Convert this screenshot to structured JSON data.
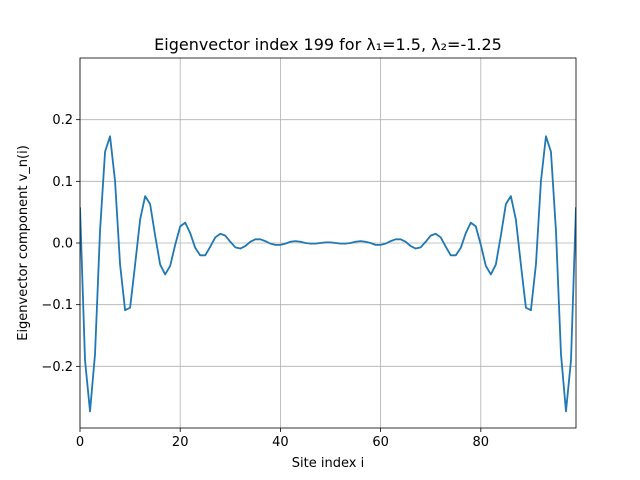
{
  "chart_data": {
    "type": "line",
    "title": "Eigenvector index 199 for λ₁=1.5, λ₂=-1.25",
    "xlabel": "Site index i",
    "ylabel": "Eigenvector component v_n(i)",
    "xlim": [
      0,
      99
    ],
    "ylim": [
      -0.3,
      0.3
    ],
    "xticks": [
      0,
      20,
      40,
      60,
      80
    ],
    "xtick_labels": [
      "0",
      "20",
      "40",
      "60",
      "80"
    ],
    "yticks": [
      -0.2,
      -0.1,
      0.0,
      0.1,
      0.2
    ],
    "ytick_labels": [
      "−0.2",
      "−0.1",
      "0.0",
      "0.1",
      "0.2"
    ],
    "grid": true,
    "series": [
      {
        "color": "#1f77b4",
        "x": [
          0,
          1,
          2,
          3,
          4,
          5,
          6,
          7,
          8,
          9,
          10,
          11,
          12,
          13,
          14,
          15,
          16,
          17,
          18,
          19,
          20,
          21,
          22,
          23,
          24,
          25,
          26,
          27,
          28,
          29,
          30,
          31,
          32,
          33,
          34,
          35,
          36,
          37,
          38,
          39,
          40,
          41,
          42,
          43,
          44,
          45,
          46,
          47,
          48,
          49,
          50,
          51,
          52,
          53,
          54,
          55,
          56,
          57,
          58,
          59,
          60,
          61,
          62,
          63,
          64,
          65,
          66,
          67,
          68,
          69,
          70,
          71,
          72,
          73,
          74,
          75,
          76,
          77,
          78,
          79,
          80,
          81,
          82,
          83,
          84,
          85,
          86,
          87,
          88,
          89,
          90,
          91,
          92,
          93,
          94,
          95,
          96,
          97,
          98,
          99
        ],
        "values": [
          0.058,
          -0.19,
          -0.273,
          -0.18,
          0.02,
          0.148,
          0.173,
          0.1,
          -0.035,
          -0.109,
          -0.105,
          -0.035,
          0.038,
          0.076,
          0.063,
          0.012,
          -0.035,
          -0.051,
          -0.037,
          -0.003,
          0.027,
          0.033,
          0.016,
          -0.008,
          -0.02,
          -0.02,
          -0.006,
          0.009,
          0.015,
          0.012,
          0.002,
          -0.007,
          -0.009,
          -0.005,
          0.002,
          0.006,
          0.006,
          0.003,
          -0.001,
          -0.003,
          -0.003,
          -0.001,
          0.002,
          0.003,
          0.002,
          0.0,
          -0.001,
          -0.001,
          0.0,
          0.001,
          0.001,
          0.0,
          -0.001,
          -0.001,
          0.0,
          0.002,
          0.003,
          0.002,
          0.0,
          -0.003,
          -0.003,
          -0.001,
          0.003,
          0.006,
          0.006,
          0.002,
          -0.005,
          -0.009,
          -0.007,
          0.002,
          0.012,
          0.015,
          0.009,
          -0.006,
          -0.02,
          -0.02,
          -0.008,
          0.016,
          0.033,
          0.027,
          -0.003,
          -0.037,
          -0.051,
          -0.035,
          0.012,
          0.063,
          0.076,
          0.038,
          -0.035,
          -0.105,
          -0.109,
          -0.035,
          0.1,
          0.173,
          0.148,
          0.02,
          -0.18,
          -0.273,
          -0.19,
          0.058
        ]
      }
    ]
  }
}
